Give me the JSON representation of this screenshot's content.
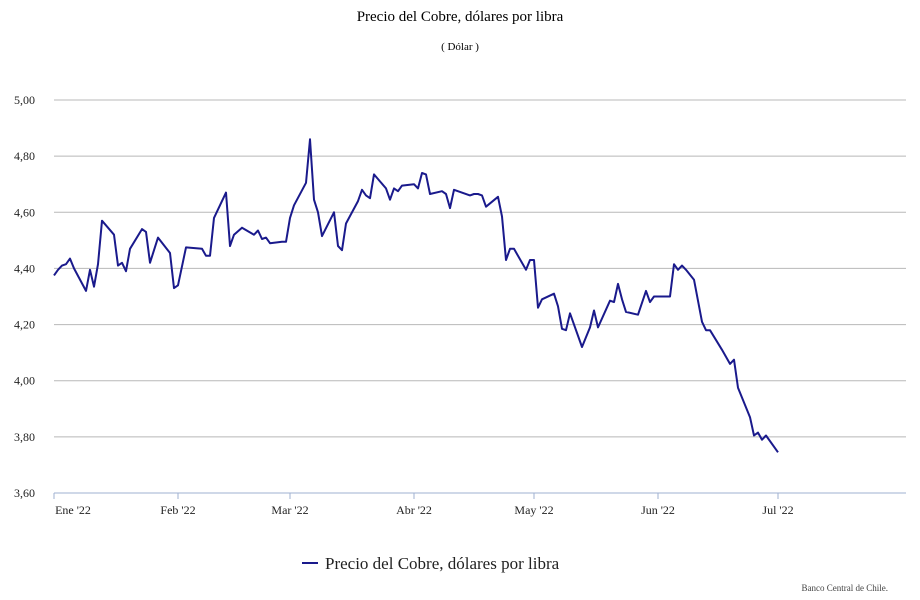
{
  "chart_data": {
    "type": "line",
    "title": "Precio del Cobre, dólares por libra",
    "subtitle": "( Dólar )",
    "ylim": [
      3.6,
      5.0
    ],
    "y_ticks": [
      "3,60",
      "3,80",
      "4,00",
      "4,20",
      "4,40",
      "4,60",
      "4,80",
      "5,00"
    ],
    "y_tick_values": [
      3.6,
      3.8,
      4.0,
      4.2,
      4.4,
      4.6,
      4.8,
      5.0
    ],
    "x_ticks": [
      {
        "label": "Ene '22",
        "day": 0
      },
      {
        "label": "Feb '22",
        "day": 31
      },
      {
        "label": "Mar '22",
        "day": 59
      },
      {
        "label": "Abr '22",
        "day": 90
      },
      {
        "label": "May '22",
        "day": 120
      },
      {
        "label": "Jun '22",
        "day": 151
      },
      {
        "label": "Jul '22",
        "day": 181
      }
    ],
    "grid": true,
    "legend_position": "bottom",
    "series": [
      {
        "name": "Precio del Cobre, dólares por libra",
        "color": "#1a1a8c",
        "points": [
          [
            0,
            4.375
          ],
          [
            1,
            4.395
          ],
          [
            2,
            4.41
          ],
          [
            3,
            4.415
          ],
          [
            4,
            4.435
          ],
          [
            5,
            4.4
          ],
          [
            8,
            4.32
          ],
          [
            9,
            4.395
          ],
          [
            10,
            4.335
          ],
          [
            11,
            4.415
          ],
          [
            12,
            4.57
          ],
          [
            15,
            4.52
          ],
          [
            16,
            4.41
          ],
          [
            17,
            4.42
          ],
          [
            18,
            4.39
          ],
          [
            19,
            4.47
          ],
          [
            22,
            4.54
          ],
          [
            23,
            4.53
          ],
          [
            24,
            4.42
          ],
          [
            26,
            4.51
          ],
          [
            29,
            4.455
          ],
          [
            30,
            4.33
          ],
          [
            31,
            4.34
          ],
          [
            33,
            4.475
          ],
          [
            37,
            4.47
          ],
          [
            38,
            4.445
          ],
          [
            39,
            4.445
          ],
          [
            40,
            4.58
          ],
          [
            43,
            4.67
          ],
          [
            44,
            4.48
          ],
          [
            45,
            4.52
          ],
          [
            47,
            4.545
          ],
          [
            50,
            4.52
          ],
          [
            51,
            4.535
          ],
          [
            52,
            4.505
          ],
          [
            53,
            4.51
          ],
          [
            54,
            4.49
          ],
          [
            57,
            4.495
          ],
          [
            58,
            4.495
          ],
          [
            59,
            4.58
          ],
          [
            60,
            4.625
          ],
          [
            63,
            4.705
          ],
          [
            64,
            4.86
          ],
          [
            65,
            4.645
          ],
          [
            66,
            4.6
          ],
          [
            67,
            4.515
          ],
          [
            70,
            4.6
          ],
          [
            71,
            4.48
          ],
          [
            72,
            4.465
          ],
          [
            73,
            4.56
          ],
          [
            76,
            4.64
          ],
          [
            77,
            4.68
          ],
          [
            78,
            4.66
          ],
          [
            79,
            4.65
          ],
          [
            80,
            4.735
          ],
          [
            83,
            4.685
          ],
          [
            84,
            4.645
          ],
          [
            85,
            4.685
          ],
          [
            86,
            4.675
          ],
          [
            87,
            4.695
          ],
          [
            90,
            4.7
          ],
          [
            91,
            4.685
          ],
          [
            92,
            4.74
          ],
          [
            93,
            4.735
          ],
          [
            94,
            4.665
          ],
          [
            97,
            4.675
          ],
          [
            98,
            4.665
          ],
          [
            99,
            4.615
          ],
          [
            100,
            4.68
          ],
          [
            104,
            4.66
          ],
          [
            105,
            4.665
          ],
          [
            106,
            4.665
          ],
          [
            107,
            4.66
          ],
          [
            108,
            4.62
          ],
          [
            111,
            4.655
          ],
          [
            112,
            4.585
          ],
          [
            113,
            4.43
          ],
          [
            114,
            4.47
          ],
          [
            115,
            4.47
          ],
          [
            118,
            4.395
          ],
          [
            119,
            4.43
          ],
          [
            120,
            4.43
          ],
          [
            121,
            4.26
          ],
          [
            122,
            4.29
          ],
          [
            125,
            4.31
          ],
          [
            126,
            4.265
          ],
          [
            127,
            4.185
          ],
          [
            128,
            4.18
          ],
          [
            129,
            4.24
          ],
          [
            132,
            4.12
          ],
          [
            134,
            4.19
          ],
          [
            135,
            4.25
          ],
          [
            136,
            4.19
          ],
          [
            139,
            4.285
          ],
          [
            140,
            4.28
          ],
          [
            141,
            4.345
          ],
          [
            142,
            4.29
          ],
          [
            143,
            4.245
          ],
          [
            146,
            4.235
          ],
          [
            148,
            4.32
          ],
          [
            149,
            4.28
          ],
          [
            150,
            4.3
          ],
          [
            151,
            4.3
          ],
          [
            154,
            4.3
          ],
          [
            155,
            4.415
          ],
          [
            156,
            4.395
          ],
          [
            157,
            4.41
          ],
          [
            158,
            4.395
          ],
          [
            160,
            4.36
          ],
          [
            162,
            4.21
          ],
          [
            163,
            4.18
          ],
          [
            164,
            4.18
          ],
          [
            167,
            4.11
          ],
          [
            169,
            4.06
          ],
          [
            170,
            4.075
          ],
          [
            171,
            3.975
          ],
          [
            174,
            3.87
          ],
          [
            175,
            3.805
          ],
          [
            176,
            3.815
          ],
          [
            177,
            3.79
          ],
          [
            178,
            3.805
          ],
          [
            181,
            3.745
          ]
        ]
      }
    ]
  },
  "source_note": "Banco Central de Chile."
}
